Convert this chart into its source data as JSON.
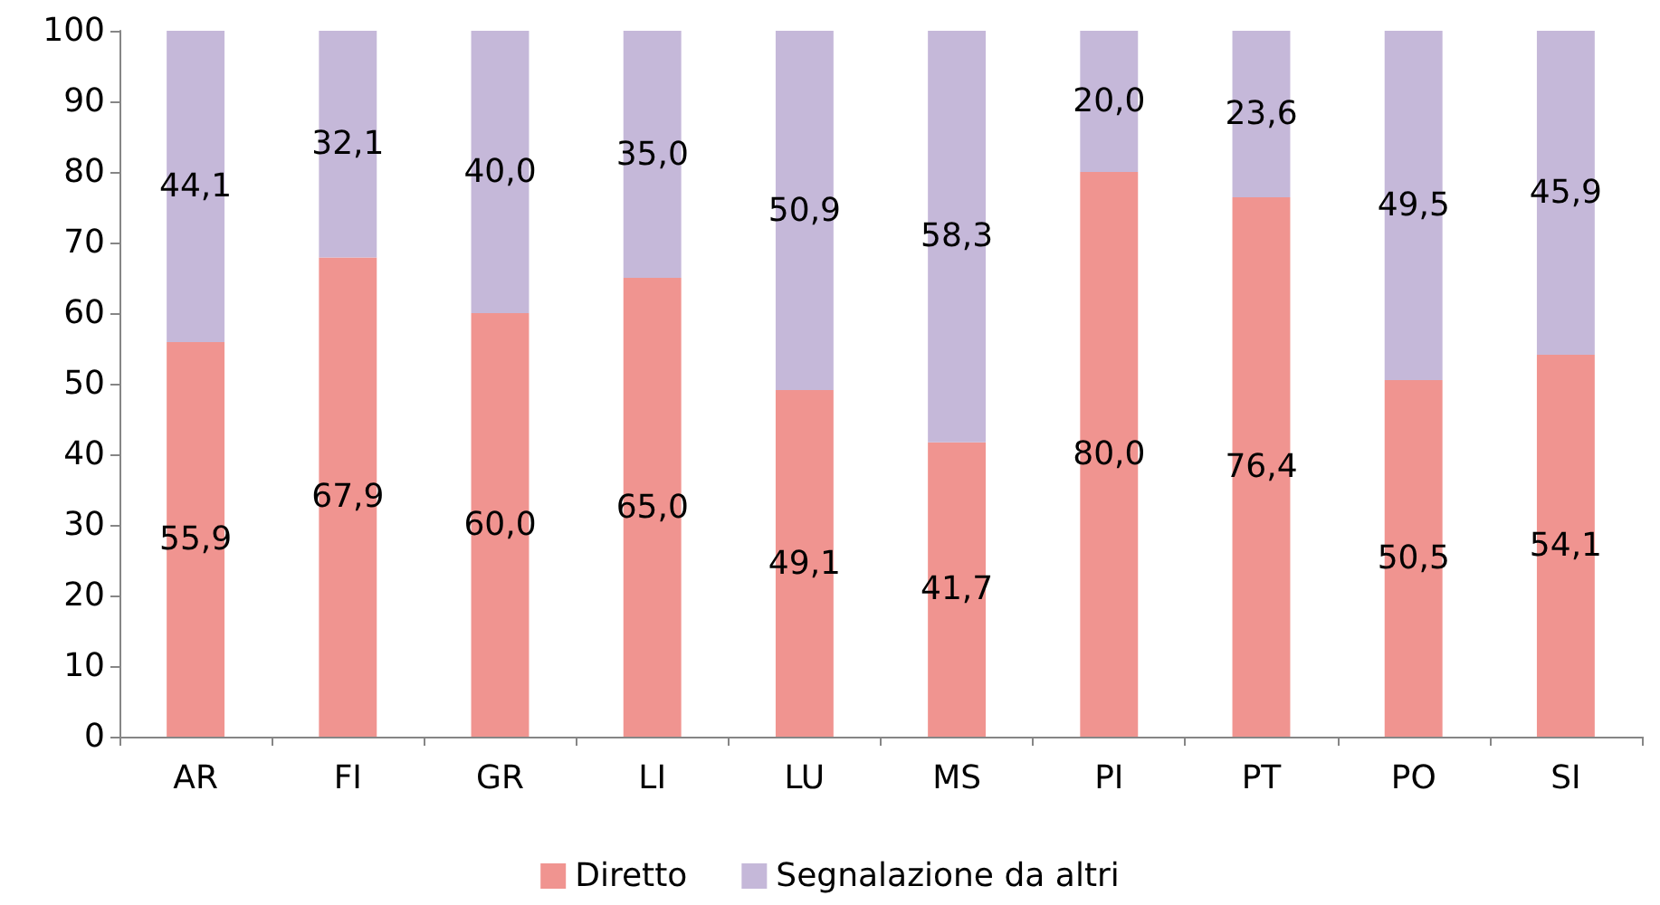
{
  "chart_data": {
    "type": "bar",
    "stacked": true,
    "categories": [
      "AR",
      "FI",
      "GR",
      "LI",
      "LU",
      "MS",
      "PI",
      "PT",
      "PO",
      "SI"
    ],
    "series": [
      {
        "name": "Diretto",
        "color": "#f09490",
        "values": [
          55.9,
          67.9,
          60.0,
          65.0,
          49.1,
          41.7,
          80.0,
          76.4,
          50.5,
          54.1
        ],
        "value_labels": [
          "55,9",
          "67,9",
          "60,0",
          "65,0",
          "49,1",
          "41,7",
          "80,0",
          "76,4",
          "50,5",
          "54,1"
        ]
      },
      {
        "name": "Segnalazione da altri",
        "color": "#c5b8d9",
        "values": [
          44.1,
          32.1,
          40.0,
          35.0,
          50.9,
          58.3,
          20.0,
          23.6,
          49.5,
          45.9
        ],
        "value_labels": [
          "44,1",
          "32,1",
          "40,0",
          "35,0",
          "50,9",
          "58,3",
          "20,0",
          "23,6",
          "49,5",
          "45,9"
        ]
      }
    ],
    "ylim": [
      0,
      100
    ],
    "yticks": [
      0,
      10,
      20,
      30,
      40,
      50,
      60,
      70,
      80,
      90,
      100
    ],
    "grid": false,
    "legend": "bottom"
  }
}
